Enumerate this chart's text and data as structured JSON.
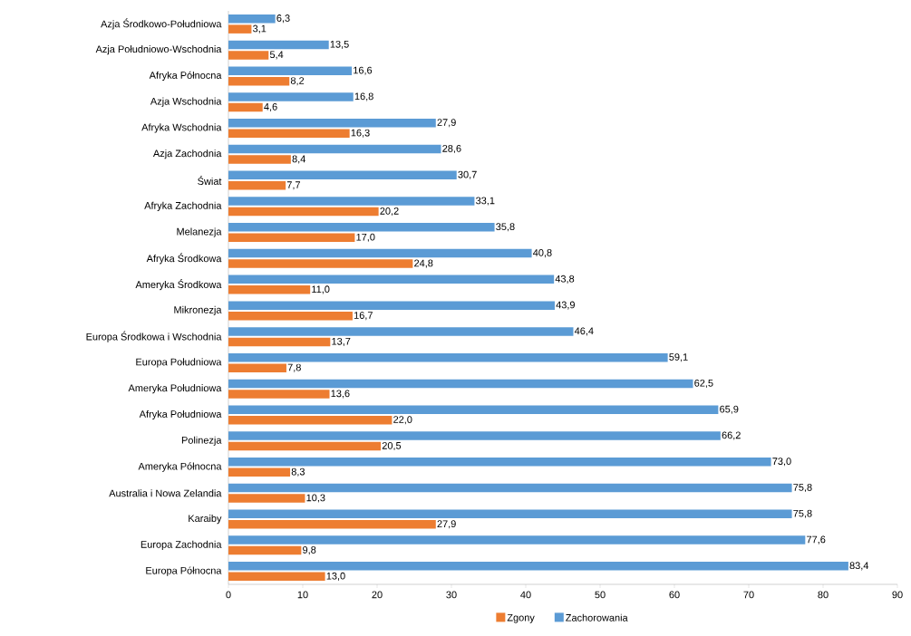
{
  "chart_data": {
    "type": "bar",
    "orientation": "horizontal",
    "categories": [
      "Azja Środkowo-Południowa",
      "Azja Południowo-Wschodnia",
      "Afryka Północna",
      "Azja Wschodnia",
      "Afryka Wschodnia",
      "Azja Zachodnia",
      "Świat",
      "Afryka Zachodnia",
      "Melanezja",
      "Afryka Środkowa",
      "Ameryka Środkowa",
      "Mikronezja",
      "Europa Środkowa i Wschodnia",
      "Europa Południowa",
      "Ameryka Południowa",
      "Afryka Południowa",
      "Polinezja",
      "Ameryka Północna",
      "Australia i Nowa Zelandia",
      "Karaiby",
      "Europa Zachodnia",
      "Europa Północna"
    ],
    "series": [
      {
        "name": "Zgony",
        "color": "#ed7d31",
        "values": [
          3.1,
          5.4,
          8.2,
          4.6,
          16.3,
          8.4,
          7.7,
          20.2,
          17.0,
          24.8,
          11.0,
          16.7,
          13.7,
          7.8,
          13.6,
          22.0,
          20.5,
          8.3,
          10.3,
          27.9,
          9.8,
          13.0
        ],
        "value_labels": [
          "3,1",
          "5,4",
          "8,2",
          "4,6",
          "16,3",
          "8,4",
          "7,7",
          "20,2",
          "17,0",
          "24,8",
          "11,0",
          "16,7",
          "13,7",
          "7,8",
          "13,6",
          "22,0",
          "20,5",
          "8,3",
          "10,3",
          "27,9",
          "9,8",
          "13,0"
        ]
      },
      {
        "name": "Zachorowania",
        "color": "#5b9bd5",
        "values": [
          6.3,
          13.5,
          16.6,
          16.8,
          27.9,
          28.6,
          30.7,
          33.1,
          35.8,
          40.8,
          43.8,
          43.9,
          46.4,
          59.1,
          62.5,
          65.9,
          66.2,
          73.0,
          75.8,
          75.8,
          77.6,
          83.4
        ],
        "value_labels": [
          "6,3",
          "13,5",
          "16,6",
          "16,8",
          "27,9",
          "28,6",
          "30,7",
          "33,1",
          "35,8",
          "40,8",
          "43,8",
          "43,9",
          "46,4",
          "59,1",
          "62,5",
          "65,9",
          "66,2",
          "73,0",
          "75,8",
          "75,8",
          "77,6",
          "83,4"
        ]
      }
    ],
    "xlim": [
      0,
      90
    ],
    "xticks": [
      0,
      10,
      20,
      30,
      40,
      50,
      60,
      70,
      80,
      90
    ],
    "legend": "bottom"
  }
}
